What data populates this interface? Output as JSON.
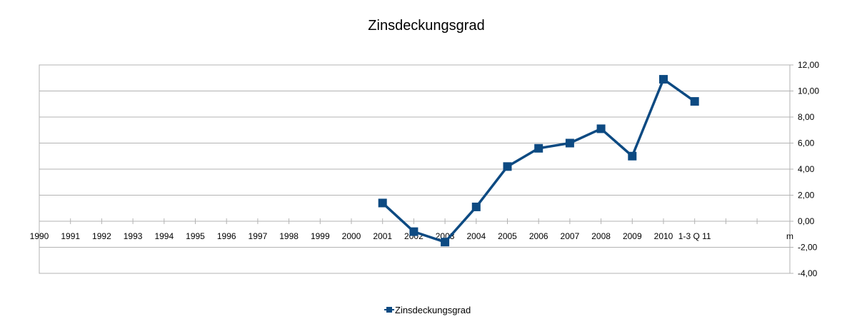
{
  "chart_data": {
    "type": "line",
    "title": "Zinsdeckungsgrad",
    "categories": [
      "1990",
      "1991",
      "1992",
      "1993",
      "1994",
      "1995",
      "1996",
      "1997",
      "1998",
      "1999",
      "2000",
      "2001",
      "2002",
      "2003",
      "2004",
      "2005",
      "2006",
      "2007",
      "2008",
      "2009",
      "2010",
      "1-3 Q 11",
      "",
      ""
    ],
    "y_axis_extra_label": "m",
    "series": [
      {
        "name": "Zinsdeckungsgrad",
        "color": "#0d4a82",
        "values": [
          null,
          null,
          null,
          null,
          null,
          null,
          null,
          null,
          null,
          null,
          null,
          1.4,
          -0.8,
          -1.6,
          1.1,
          4.2,
          5.6,
          6.0,
          7.1,
          5.0,
          10.9,
          9.2,
          null,
          null
        ]
      }
    ],
    "ylim": [
      -4,
      12
    ],
    "yticks": [
      "-4,00",
      "-2,00",
      "0,00",
      "2,00",
      "4,00",
      "6,00",
      "8,00",
      "10,00",
      "12,00"
    ],
    "y_axis_position": "right",
    "grid": true,
    "legend_position": "bottom"
  }
}
